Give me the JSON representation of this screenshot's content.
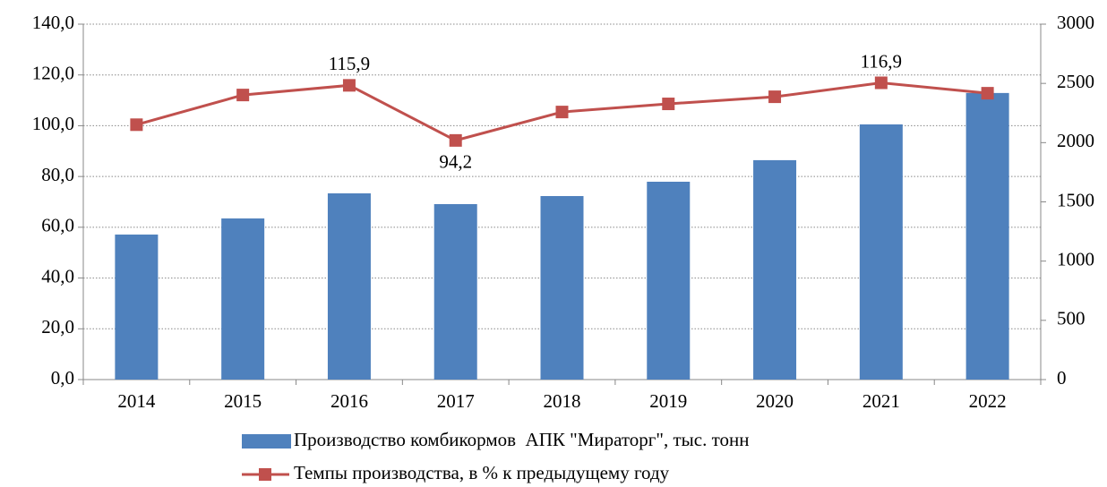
{
  "chart_data": {
    "type": "combo",
    "categories": [
      "2014",
      "2015",
      "2016",
      "2017",
      "2018",
      "2019",
      "2020",
      "2021",
      "2022"
    ],
    "series": [
      {
        "name": "Производство комбикормов  АПК \"Мираторг\", тыс. тонн",
        "type": "bar",
        "axis": "y2",
        "color": "#4f81bd",
        "values": [
          1224,
          1360,
          1572,
          1481,
          1549,
          1670,
          1852,
          2154,
          2419
        ]
      },
      {
        "name": "Темпы производства, в % к предыдущему году",
        "type": "line",
        "axis": "y",
        "color": "#c0504d",
        "values": [
          100.4,
          112.1,
          115.9,
          94.2,
          105.4,
          108.6,
          111.4,
          116.9,
          112.8
        ],
        "value_labels": [
          null,
          null,
          "115,9",
          "94,2",
          null,
          null,
          null,
          "116,9",
          null
        ]
      }
    ],
    "ylim": [
      0,
      140
    ],
    "yticks": [
      {
        "value": 0,
        "label": "0,0"
      },
      {
        "value": 20,
        "label": "20,0"
      },
      {
        "value": 40,
        "label": "40,0"
      },
      {
        "value": 60,
        "label": "60,0"
      },
      {
        "value": 80,
        "label": "80,0"
      },
      {
        "value": 100,
        "label": "100,0"
      },
      {
        "value": 120,
        "label": "120,0"
      },
      {
        "value": 140,
        "label": "140,0"
      }
    ],
    "y2lim": [
      0,
      3000
    ],
    "y2ticks": [
      0,
      500,
      1000,
      1500,
      2000,
      2500,
      3000
    ],
    "grid": true
  }
}
